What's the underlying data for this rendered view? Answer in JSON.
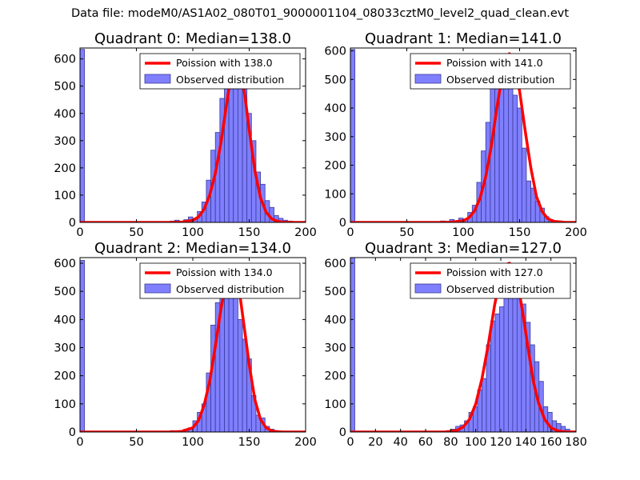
{
  "figure_title": "Data file: modeM0/AS1A02_080T01_9000001104_08033cztM0_level2_quad_clean.evt",
  "colors": {
    "bar_fill": "#7f7fff",
    "bar_edge": "#3a3a9a",
    "poisson_line": "#ff0000",
    "axes": "#000000"
  },
  "chart_data": [
    {
      "type": "bar",
      "title": "Quadrant 0: Median=138.0",
      "xlim": [
        0,
        200
      ],
      "ylim": [
        0,
        640
      ],
      "xticks": [
        0,
        50,
        100,
        150,
        200
      ],
      "yticks": [
        0,
        100,
        200,
        300,
        400,
        500,
        600
      ],
      "grid": false,
      "legend": [
        "Poission with 138.0",
        "Observed distribution"
      ],
      "median": 138.0,
      "bin_width": 4,
      "bins": [
        0,
        80,
        84,
        88,
        92,
        96,
        100,
        104,
        108,
        112,
        116,
        120,
        124,
        128,
        132,
        136,
        140,
        144,
        148,
        152,
        156,
        160,
        164,
        168,
        172,
        176,
        180,
        184,
        188,
        192
      ],
      "counts": [
        635,
        5,
        8,
        5,
        10,
        20,
        15,
        40,
        75,
        155,
        265,
        330,
        455,
        540,
        500,
        600,
        500,
        490,
        400,
        300,
        185,
        140,
        80,
        55,
        25,
        15,
        8,
        5,
        3,
        2
      ],
      "poisson": {
        "x": [
          0,
          80,
          90,
          100,
          105,
          110,
          115,
          120,
          125,
          130,
          134,
          138,
          142,
          146,
          150,
          155,
          160,
          165,
          170,
          175,
          180,
          190,
          200
        ],
        "y": [
          0,
          0,
          1,
          8,
          20,
          48,
          100,
          180,
          295,
          435,
          545,
          605,
          575,
          470,
          340,
          190,
          90,
          38,
          13,
          4,
          1,
          0,
          0
        ]
      }
    },
    {
      "type": "bar",
      "title": "Quadrant 1: Median=141.0",
      "xlim": [
        0,
        200
      ],
      "ylim": [
        0,
        610
      ],
      "xticks": [
        0,
        50,
        100,
        150,
        200
      ],
      "yticks": [
        0,
        100,
        200,
        300,
        400,
        500,
        600
      ],
      "grid": false,
      "legend": [
        "Poission with 141.0",
        "Observed distribution"
      ],
      "median": 141.0,
      "bin_width": 4,
      "bins": [
        0,
        80,
        84,
        88,
        92,
        96,
        100,
        104,
        108,
        112,
        116,
        120,
        124,
        128,
        132,
        136,
        140,
        144,
        148,
        152,
        156,
        160,
        164,
        168,
        172,
        176,
        180,
        184,
        188,
        192
      ],
      "counts": [
        605,
        5,
        3,
        10,
        5,
        15,
        10,
        35,
        60,
        140,
        250,
        350,
        475,
        545,
        550,
        590,
        570,
        445,
        400,
        260,
        145,
        120,
        75,
        50,
        20,
        10,
        5,
        5,
        3,
        2
      ],
      "poisson": {
        "x": [
          0,
          80,
          90,
          100,
          105,
          110,
          115,
          120,
          125,
          130,
          135,
          141,
          145,
          150,
          155,
          160,
          165,
          170,
          175,
          180,
          190,
          200
        ],
        "y": [
          0,
          0,
          1,
          6,
          16,
          40,
          85,
          160,
          270,
          405,
          525,
          590,
          560,
          460,
          320,
          190,
          90,
          38,
          13,
          4,
          0,
          0
        ]
      }
    },
    {
      "type": "bar",
      "title": "Quadrant 2: Median=134.0",
      "xlim": [
        0,
        200
      ],
      "ylim": [
        0,
        620
      ],
      "xticks": [
        0,
        50,
        100,
        150,
        200
      ],
      "yticks": [
        0,
        100,
        200,
        300,
        400,
        500,
        600
      ],
      "grid": false,
      "legend": [
        "Poission with 134.0",
        "Observed distribution"
      ],
      "median": 134.0,
      "bin_width": 4,
      "bins": [
        0,
        80,
        84,
        88,
        92,
        96,
        100,
        104,
        108,
        112,
        116,
        120,
        124,
        128,
        132,
        136,
        140,
        144,
        148,
        152,
        156,
        160,
        164,
        168,
        172,
        176,
        180
      ],
      "counts": [
        610,
        5,
        3,
        5,
        10,
        15,
        40,
        70,
        100,
        210,
        380,
        460,
        555,
        520,
        580,
        540,
        400,
        330,
        260,
        130,
        60,
        50,
        20,
        10,
        5,
        3,
        1
      ],
      "poisson": {
        "x": [
          0,
          80,
          90,
          100,
          105,
          110,
          115,
          120,
          125,
          130,
          134,
          138,
          142,
          146,
          150,
          155,
          160,
          165,
          170,
          175,
          180,
          200
        ],
        "y": [
          0,
          0,
          2,
          15,
          40,
          95,
          180,
          305,
          440,
          545,
          580,
          560,
          480,
          360,
          240,
          115,
          45,
          15,
          4,
          1,
          0,
          0
        ]
      }
    },
    {
      "type": "bar",
      "title": "Quadrant 3: Median=127.0",
      "xlim": [
        0,
        180
      ],
      "ylim": [
        0,
        620
      ],
      "xticks": [
        0,
        20,
        40,
        60,
        80,
        100,
        120,
        140,
        160,
        180
      ],
      "yticks": [
        0,
        100,
        200,
        300,
        400,
        500,
        600
      ],
      "grid": false,
      "legend": [
        "Poission with 127.0",
        "Observed distribution"
      ],
      "median": 127.0,
      "bin_width": 3.5,
      "bins": [
        0,
        77,
        80.5,
        84,
        87.5,
        91,
        94.5,
        98,
        101.5,
        105,
        108.5,
        112,
        115.5,
        119,
        122.5,
        126,
        129.5,
        133,
        136.5,
        140,
        143.5,
        147,
        150.5,
        154,
        157.5,
        161,
        164.5,
        168,
        171.5
      ],
      "counts": [
        620,
        5,
        10,
        20,
        25,
        40,
        70,
        90,
        150,
        190,
        310,
        395,
        420,
        445,
        570,
        510,
        575,
        590,
        455,
        390,
        310,
        250,
        180,
        90,
        70,
        40,
        30,
        20,
        10
      ],
      "poisson": {
        "x": [
          0,
          75,
          80,
          85,
          90,
          95,
          100,
          105,
          110,
          115,
          120,
          124,
          127,
          130,
          134,
          138,
          142,
          146,
          150,
          155,
          160,
          165,
          170,
          180
        ],
        "y": [
          0,
          0,
          2,
          6,
          18,
          45,
          100,
          190,
          310,
          450,
          560,
          595,
          600,
          585,
          520,
          410,
          290,
          180,
          105,
          45,
          15,
          5,
          1,
          0
        ]
      }
    }
  ]
}
